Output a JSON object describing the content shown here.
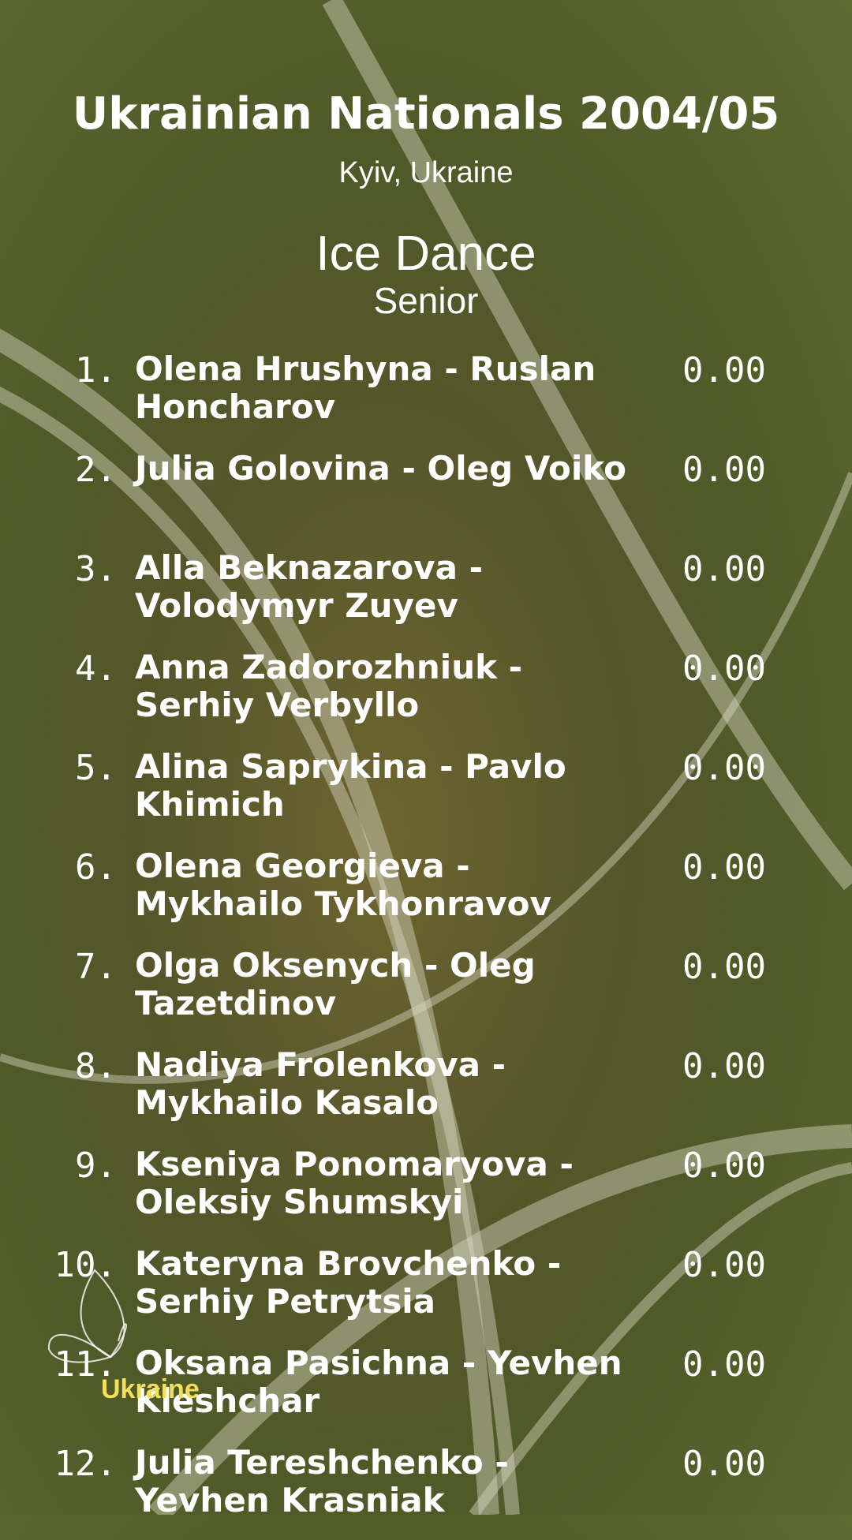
{
  "header": {
    "title": "Ukrainian Nationals 2004/05",
    "location": "Kyiv, Ukraine",
    "event": "Ice Dance",
    "level": "Senior"
  },
  "entries": [
    {
      "rank": "1.",
      "name": "Olena Hrushyna - Ruslan Honcharov",
      "score": "0.00"
    },
    {
      "rank": "2.",
      "name": "Julia Golovina - Oleg Voiko",
      "score": "0.00"
    },
    {
      "rank": "3.",
      "name": "Alla Beknazarova - Volodymyr Zuyev",
      "score": "0.00"
    },
    {
      "rank": "4.",
      "name": "Anna Zadorozhniuk - Serhiy Verbyllo",
      "score": "0.00"
    },
    {
      "rank": "5.",
      "name": "Alina Saprykina - Pavlo Khimich",
      "score": "0.00"
    },
    {
      "rank": "6.",
      "name": "Olena Georgieva - Mykhailo Tykhonravov",
      "score": "0.00"
    },
    {
      "rank": "7.",
      "name": "Olga Oksenych - Oleg Tazetdinov",
      "score": "0.00"
    },
    {
      "rank": "8.",
      "name": "Nadiya Frolenkova - Mykhailo Kasalo",
      "score": "0.00"
    },
    {
      "rank": "9.",
      "name": "Kseniya Ponomaryova - Oleksiy Shumskyi",
      "score": "0.00"
    },
    {
      "rank": "10.",
      "name": "Kateryna Brovchenko - Serhiy Petrytsia",
      "score": "0.00"
    },
    {
      "rank": "11.",
      "name": "Oksana Pasichna - Yevhen Kleshchar",
      "score": "0.00"
    },
    {
      "rank": "12.",
      "name": "Julia Tereshchenko - Yevhen Krasniak",
      "score": "0.00"
    }
  ],
  "logo": {
    "text": "Ukraine"
  }
}
